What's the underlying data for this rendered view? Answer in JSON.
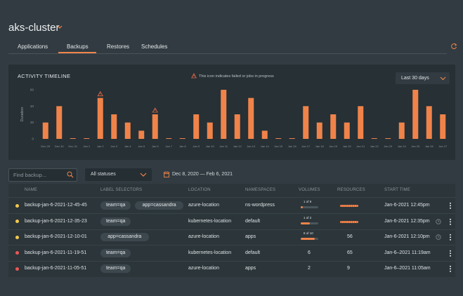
{
  "header": {
    "title": "aks-cluster",
    "tabs": [
      "Applications",
      "Backups",
      "Restores",
      "Schedules"
    ],
    "active_tab": 1
  },
  "timeline": {
    "title": "ACTIVITY TIMELINE",
    "note": "This icon indicates failed or jobs in progress",
    "range": "Last 30 days"
  },
  "chart_data": {
    "type": "bar",
    "y_label": "Duration",
    "categories": [
      "Dec 29",
      "Dec 30",
      "Dec 31",
      "Jan 1",
      "Jan 2",
      "Jan 3",
      "Jan 4",
      "Jan 5",
      "Jan 6",
      "Jan 7",
      "Jan 8",
      "Jan 9",
      "Jan 10",
      "Jan 11",
      "Jan 12",
      "Jan 13",
      "Jan 14",
      "Jan 15",
      "Jan 16",
      "Jan 17",
      "Jan 18",
      "Jan 19",
      "Jan 20",
      "Jan 21",
      "Jan 22",
      "Jan 23",
      "Jan 24",
      "Jan 25",
      "Jan 26",
      "Jan 27"
    ],
    "values": [
      20,
      40,
      0,
      0,
      50,
      30,
      20,
      10,
      30,
      0,
      0,
      30,
      20,
      60,
      30,
      50,
      10,
      0,
      0,
      40,
      20,
      30,
      20,
      40,
      0,
      0,
      20,
      60,
      40,
      30
    ],
    "warning": [
      false,
      false,
      false,
      false,
      true,
      false,
      false,
      false,
      true,
      false,
      false,
      false,
      false,
      false,
      false,
      false,
      false,
      false,
      false,
      false,
      false,
      false,
      false,
      false,
      false,
      false,
      false,
      false,
      false,
      false
    ],
    "color": "#f0834a",
    "ylim": [
      0,
      60
    ],
    "yticks": [
      0,
      20,
      40,
      60
    ]
  },
  "filters": {
    "search_placeholder": "Find backup...",
    "status": "All statuses",
    "date_range": "Dec 8, 2020 — Feb 6, 2021"
  },
  "table": {
    "columns": [
      "NAME",
      "LABEL SELECTORS",
      "LOCATION",
      "NAMESPACES",
      "VOLUMES",
      "RESOURCES",
      "START TIME"
    ],
    "rows": [
      {
        "status_color": "#f2c94c",
        "name": "backup-jan-6-2021-12-45-45",
        "labels": [
          "team=qa",
          "app=cassandra"
        ],
        "location": "azure-location",
        "namespaces": "ns-wordpress",
        "volumes": {
          "label": "1 of 9",
          "done": 1,
          "total": 9
        },
        "start_time": "Jan-6-2021 12:45pm",
        "scheduled": false
      },
      {
        "status_color": "#f2c94c",
        "name": "backup-jan-6-2021-12-35-23",
        "labels": [
          "team=qa"
        ],
        "location": "kubernetes-location",
        "namespaces": "default",
        "volumes": {
          "label": "1 of 2",
          "done": 1,
          "total": 2
        },
        "start_time": "Jan-6-2021 12:35pm",
        "scheduled": true
      },
      {
        "status_color": "#f2c94c",
        "name": "backup-jan-6-2021-12-10-01",
        "labels": [
          "app=cassandra"
        ],
        "location": "azure-location",
        "namespaces": "apps",
        "volumes": {
          "label": "8 of 10",
          "done": 8,
          "total": 10
        },
        "resources": "56",
        "start_time": "Jan-6-2021 12:10pm",
        "scheduled": true
      },
      {
        "status_color": "#eb5757",
        "name": "backup-jan-6-2021-11-19-51",
        "labels": [
          "team=qa"
        ],
        "location": "kubernetes-location",
        "namespaces": "default",
        "volumes": "6",
        "resources": "65",
        "start_time": "Jan-6–2021 11:19am",
        "scheduled": false
      },
      {
        "status_color": "#eb5757",
        "name": "backup-jan-6-2021-11-05-51",
        "labels": [
          "team=qa"
        ],
        "location": "azure-location",
        "namespaces": "apps",
        "volumes": "2",
        "resources": "9",
        "start_time": "Jan-6–2021 11:05am",
        "scheduled": false
      }
    ]
  }
}
